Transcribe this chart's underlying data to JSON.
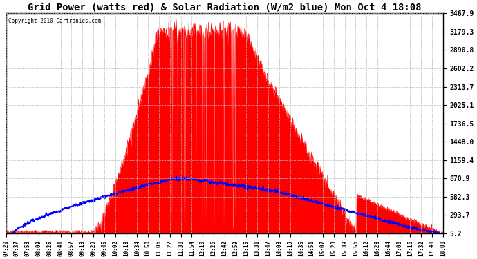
{
  "title": "Grid Power (watts red) & Solar Radiation (W/m2 blue) Mon Oct 4 18:08",
  "copyright": "Copyright 2010 Cartronics.com",
  "yticks": [
    5.2,
    293.7,
    582.3,
    870.9,
    1159.4,
    1448.0,
    1736.5,
    2025.1,
    2313.7,
    2602.2,
    2890.8,
    3179.3,
    3467.9
  ],
  "ymin": 5.2,
  "ymax": 3467.9,
  "background_color": "#ffffff",
  "grid_color": "#bbbbbb",
  "fill_color": "#ff0000",
  "line_color": "#0000ff",
  "title_fontsize": 10,
  "xtick_labels": [
    "07:20",
    "07:37",
    "07:53",
    "08:09",
    "08:25",
    "08:41",
    "08:57",
    "09:13",
    "09:29",
    "09:45",
    "10:02",
    "10:18",
    "10:34",
    "10:50",
    "11:06",
    "11:22",
    "11:38",
    "11:54",
    "12:10",
    "12:26",
    "12:42",
    "12:59",
    "13:15",
    "13:31",
    "13:47",
    "14:03",
    "14:19",
    "14:35",
    "14:51",
    "15:07",
    "15:23",
    "15:39",
    "15:56",
    "16:12",
    "16:28",
    "16:44",
    "17:00",
    "17:16",
    "17:32",
    "17:48",
    "18:08"
  ]
}
